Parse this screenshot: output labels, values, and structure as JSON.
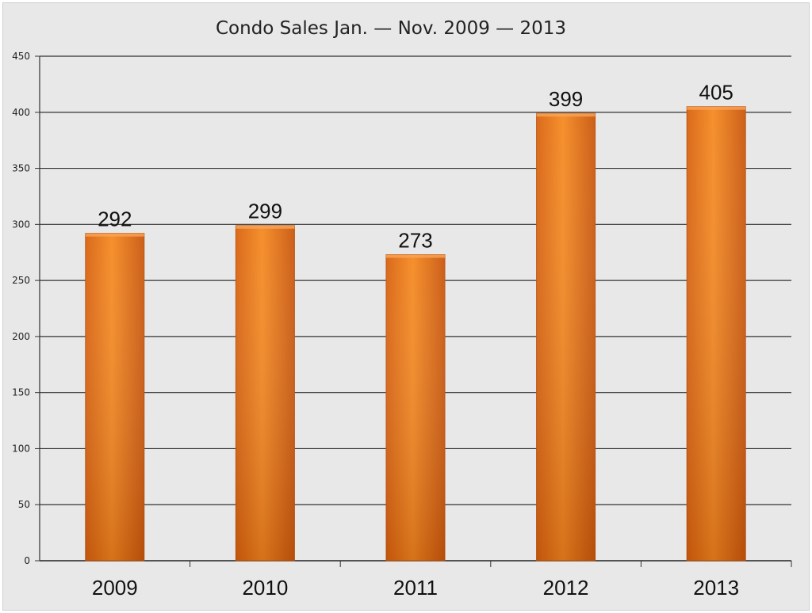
{
  "chart_data": {
    "type": "bar",
    "title": "Condo Sales Jan. — Nov. 2009 — 2013",
    "xlabel": "",
    "ylabel": "",
    "categories": [
      "2009",
      "2010",
      "2011",
      "2012",
      "2013"
    ],
    "values": [
      292,
      299,
      273,
      399,
      405
    ],
    "data_labels": [
      "292",
      "299",
      "273",
      "399",
      "405"
    ],
    "ylim": [
      0,
      450
    ],
    "yticks": [
      0,
      50,
      100,
      150,
      200,
      250,
      300,
      350,
      400,
      450
    ],
    "grid": true,
    "legend": "none",
    "bar_color": "#f07a18",
    "bar_color_dark": "#c85a10"
  }
}
